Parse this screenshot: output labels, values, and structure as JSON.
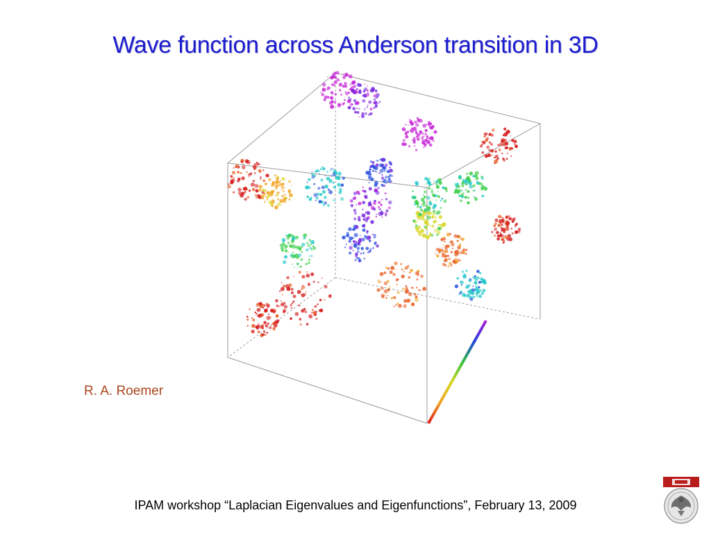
{
  "slide": {
    "title": "Wave function across Anderson transition in 3D",
    "author": "R. A. Roemer",
    "footer": "IPAM workshop “Laplacian Eigenvalues and Eigenfunctions”, February 13, 2009"
  },
  "figure": {
    "icon": "wavefunction-cube-visualization",
    "palette": [
      "#d51f1f",
      "#e8622a",
      "#f3a72b",
      "#d8d82a",
      "#3fcf4a",
      "#27c9c9",
      "#2e55e0",
      "#7b2ee0",
      "#c92ad8"
    ]
  },
  "logo": {
    "icon": "university-crest-icon",
    "accent": "#b91c1c"
  },
  "colors": {
    "title": "#1c1ccf",
    "author": "#a8461e"
  }
}
